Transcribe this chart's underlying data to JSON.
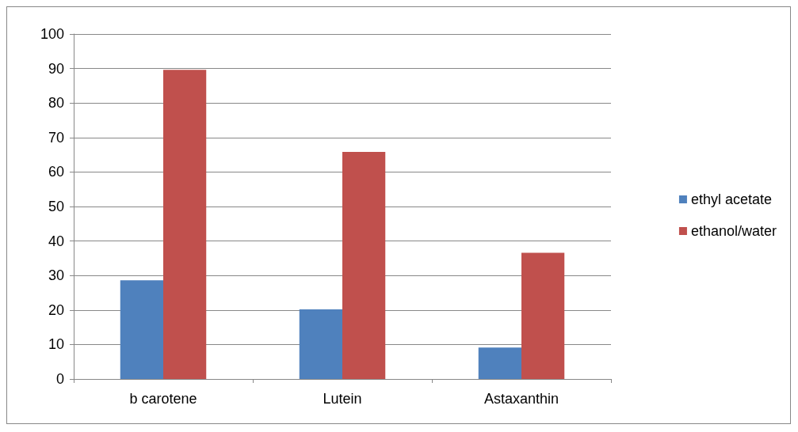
{
  "chart_data": {
    "type": "bar",
    "categories": [
      "b carotene",
      "Lutein",
      "Astaxanthin"
    ],
    "series": [
      {
        "name": "ethyl acetate",
        "color": "#4f81bd",
        "values": [
          28.6,
          20.2,
          9.1
        ]
      },
      {
        "name": "ethanol/water",
        "color": "#c0504d",
        "values": [
          89.6,
          65.8,
          36.6
        ]
      }
    ],
    "ylim": [
      0,
      100
    ],
    "yticks": [
      0,
      10,
      20,
      30,
      40,
      50,
      60,
      70,
      80,
      90,
      100
    ],
    "grid": "y",
    "legend": "right"
  }
}
